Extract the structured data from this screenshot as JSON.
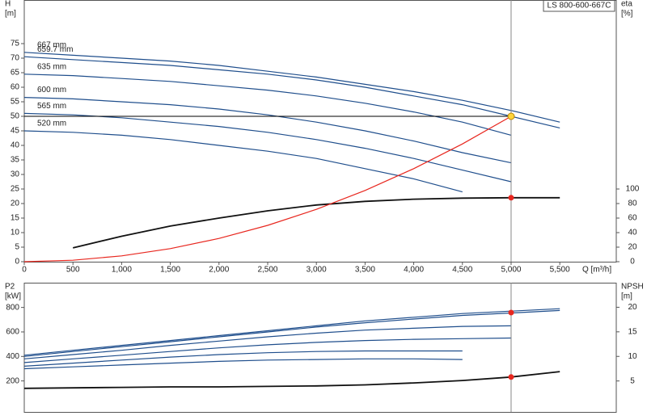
{
  "chart_data": [
    {
      "type": "line",
      "title": "LS 800-600-667C",
      "ylabel": [
        "H",
        "[m]"
      ],
      "y2label": [
        "eta",
        "[%]"
      ],
      "xlabel": "Q [m³/h]",
      "x": [
        0,
        500,
        1000,
        1500,
        2000,
        2500,
        3000,
        3500,
        4000,
        4500,
        5000,
        5500
      ],
      "xlim": [
        0,
        6080
      ],
      "ylim": [
        0,
        90
      ],
      "y2lim": [
        0,
        360
      ],
      "xticks": [
        0,
        500,
        {
          "value": 1000,
          "label": "1,000"
        },
        {
          "value": 1500,
          "label": "1,500"
        },
        {
          "value": 2000,
          "label": "2,000"
        },
        {
          "value": 2500,
          "label": "2,500"
        },
        {
          "value": 3000,
          "label": "3,000"
        },
        {
          "value": 3500,
          "label": "3,500"
        },
        {
          "value": 4000,
          "label": "4,000"
        },
        {
          "value": 4500,
          "label": "4,500"
        },
        {
          "value": 5000,
          "label": "5,000"
        },
        {
          "value": 5500,
          "label": "5,500"
        }
      ],
      "yticks": [
        0,
        5,
        10,
        15,
        20,
        25,
        30,
        35,
        40,
        45,
        50,
        55,
        60,
        65,
        70,
        75
      ],
      "y2ticks": [
        0,
        20,
        40,
        60,
        80,
        100
      ],
      "series": [
        {
          "name": "667 mm",
          "color": "#1f4e8c",
          "values": [
            72,
            71,
            70,
            69,
            67.5,
            65.5,
            63.5,
            61,
            58.5,
            55.5,
            52,
            48
          ]
        },
        {
          "name": "659.7 mm",
          "color": "#1f4e8c",
          "values": [
            70.5,
            69.5,
            68.5,
            67.5,
            66,
            64.5,
            62.5,
            60,
            57,
            54,
            50,
            46
          ]
        },
        {
          "name": "635 mm",
          "color": "#1f4e8c",
          "values": [
            64.5,
            64,
            63,
            62,
            60.5,
            59,
            57,
            54.5,
            51.5,
            48,
            43.5,
            null
          ]
        },
        {
          "name": "600 mm",
          "color": "#1f4e8c",
          "values": [
            56.5,
            56,
            55,
            54,
            52.5,
            50.5,
            48,
            45,
            41.5,
            37.5,
            34,
            null
          ]
        },
        {
          "name": "565 mm",
          "color": "#1f4e8c",
          "values": [
            51,
            50.5,
            49.5,
            48,
            46.5,
            44.5,
            42,
            39,
            35.5,
            31.5,
            27.5,
            null
          ]
        },
        {
          "name": "520 mm",
          "color": "#1f4e8c",
          "values": [
            45,
            44.5,
            43.5,
            42,
            40,
            38,
            35.5,
            32,
            28.5,
            24,
            null,
            null
          ]
        },
        {
          "color": "#111111",
          "axis": "y2",
          "values": [
            null,
            19,
            35,
            49,
            60,
            70,
            78,
            83,
            86,
            87.5,
            88,
            88
          ]
        },
        {
          "color": "#e8271f",
          "values": [
            0,
            0.5,
            2,
            4.5,
            8,
            12.5,
            18,
            24.5,
            32,
            40.5,
            50,
            null
          ]
        }
      ],
      "duty_point": {
        "q": 5000,
        "h": 50,
        "eta": 88
      }
    },
    {
      "type": "line",
      "ylabel": [
        "P2",
        "[kW]"
      ],
      "y2label": [
        "NPSH",
        "[m]"
      ],
      "x": [
        0,
        500,
        1000,
        1500,
        2000,
        2500,
        3000,
        3500,
        4000,
        4500,
        5000,
        5500
      ],
      "xlim": [
        0,
        6080
      ],
      "ylim": [
        -53,
        1002
      ],
      "y2lim": [
        -1.3,
        25
      ],
      "yticks": [
        200,
        400,
        600,
        800
      ],
      "y2ticks": [
        5,
        10,
        15,
        20
      ],
      "series": [
        {
          "color": "#1f4e8c",
          "values": [
            410,
            450,
            490,
            530,
            570,
            610,
            650,
            690,
            720,
            750,
            770,
            790
          ]
        },
        {
          "color": "#1f4e8c",
          "values": [
            400,
            440,
            480,
            520,
            560,
            600,
            640,
            675,
            705,
            735,
            755,
            775
          ]
        },
        {
          "color": "#1f4e8c",
          "values": [
            380,
            415,
            450,
            490,
            525,
            560,
            590,
            615,
            630,
            645,
            650,
            null
          ]
        },
        {
          "color": "#1f4e8c",
          "values": [
            350,
            380,
            410,
            440,
            470,
            495,
            515,
            530,
            540,
            545,
            550,
            null
          ]
        },
        {
          "color": "#1f4e8c",
          "values": [
            320,
            345,
            370,
            395,
            415,
            430,
            440,
            445,
            445,
            445,
            null,
            null
          ]
        },
        {
          "color": "#1f4e8c",
          "values": [
            300,
            315,
            330,
            345,
            360,
            370,
            375,
            380,
            380,
            375,
            null,
            null
          ]
        },
        {
          "color": "#111111",
          "axis": "y2",
          "values": [
            3.5,
            3.6,
            3.7,
            3.8,
            3.8,
            3.9,
            4,
            4.2,
            4.6,
            5.1,
            5.8,
            6.9
          ]
        }
      ],
      "duty_point": {
        "q": 5000,
        "p2": 758,
        "npsh": 5.8
      }
    }
  ]
}
